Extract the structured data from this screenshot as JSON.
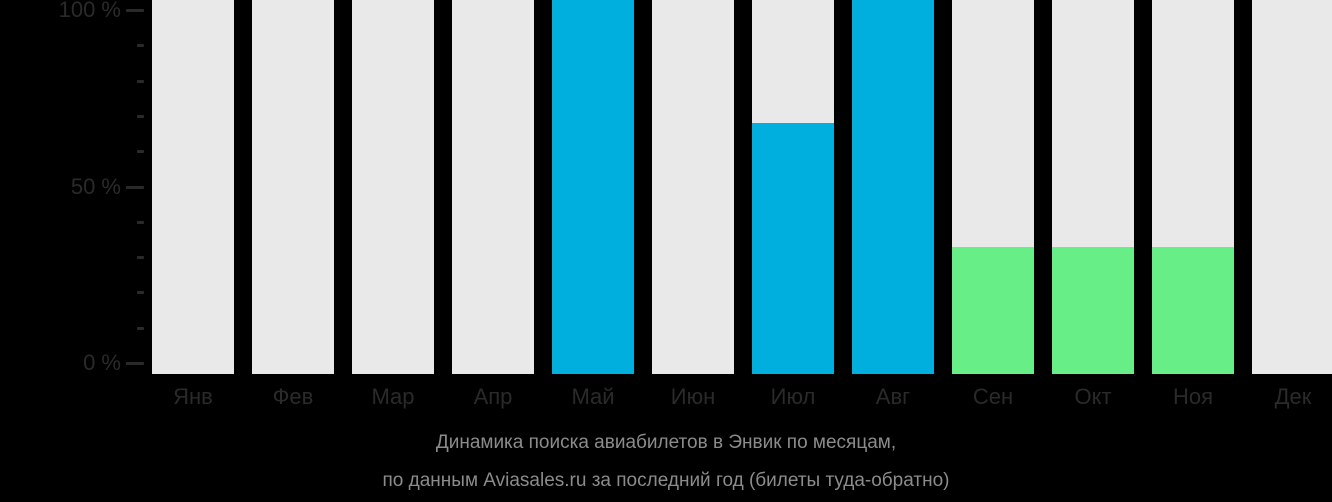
{
  "background_color": "#000000",
  "caption": {
    "line1": "Динамика поиска авиабилетов в Энвик по месяцам,",
    "line2": "по данным Aviasales.ru за последний год (билеты туда-обратно)",
    "color": "#8b8b8b"
  },
  "axis": {
    "tick_labels": [
      {
        "percent": 0,
        "label": "0 %"
      },
      {
        "percent": 50,
        "label": "50 %"
      },
      {
        "percent": 100,
        "label": "100 %"
      }
    ],
    "minor_tick_step_percent": 10,
    "label_color": "#2a2a2a",
    "tick_color": "#2a2a2a"
  },
  "chart_data": {
    "type": "bar",
    "title": "Динамика поиска авиабилетов в Энвик по месяцам",
    "subtitle": "по данным Aviasales.ru за последний год (билеты туда-обратно)",
    "categories": [
      "Янв",
      "Фев",
      "Мар",
      "Апр",
      "Май",
      "Июн",
      "Июл",
      "Авг",
      "Сен",
      "Окт",
      "Ноя",
      "Дек"
    ],
    "values": [
      0,
      0,
      0,
      0,
      100,
      0,
      68,
      100,
      33,
      33,
      33,
      0
    ],
    "point_colors": [
      null,
      null,
      null,
      null,
      "#00afdd",
      null,
      "#00afdd",
      "#00afdd",
      "#68ee86",
      "#68ee86",
      "#68ee86",
      null
    ],
    "track_color": "#e9e9e9",
    "background_track_full_height": true,
    "xlabel": "",
    "ylabel": "",
    "ylim": [
      0,
      100
    ],
    "yticks_major": [
      0,
      50,
      100
    ],
    "legend": "none",
    "grid": "off",
    "month_label_color": "#2a2a2c"
  },
  "colors": {
    "high_season": "#00afdd",
    "mid_season": "#68ee86",
    "track": "#e9e9e9"
  }
}
